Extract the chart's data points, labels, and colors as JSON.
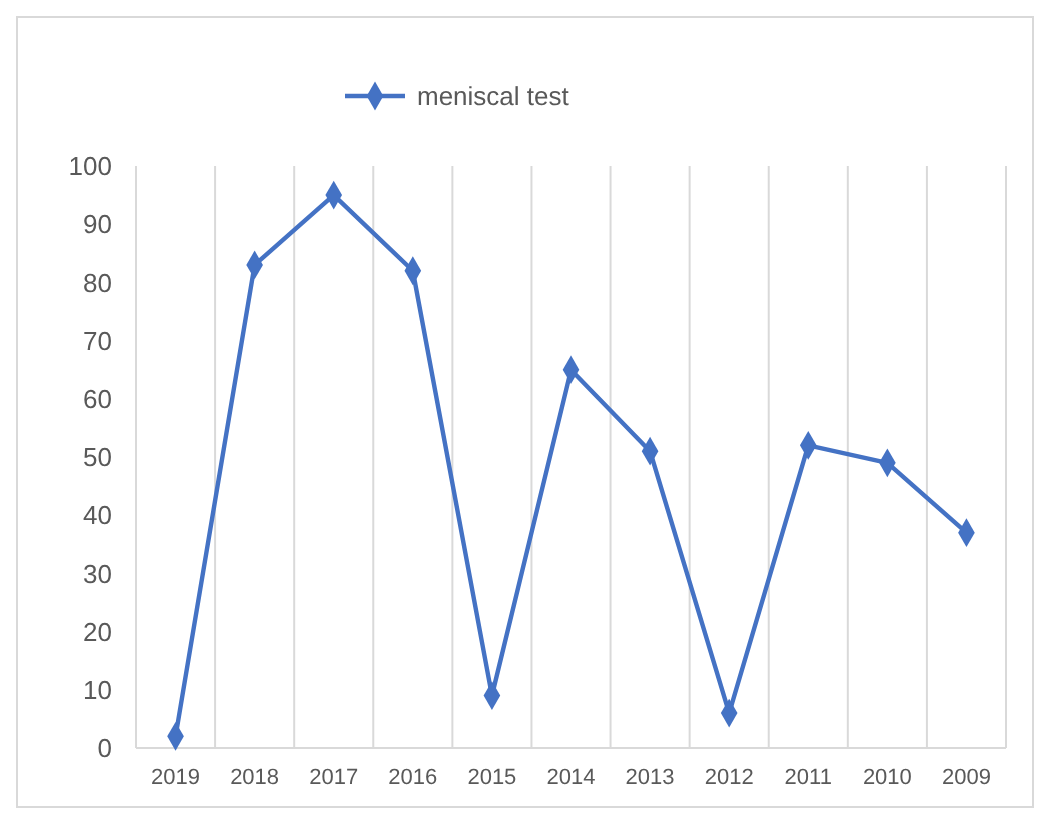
{
  "chart_data": {
    "type": "line",
    "categories": [
      "2019",
      "2018",
      "2017",
      "2016",
      "2015",
      "2014",
      "2013",
      "2012",
      "2011",
      "2010",
      "2009"
    ],
    "series": [
      {
        "name": "meniscal test",
        "color": "#4472c4",
        "values": [
          2,
          83,
          95,
          82,
          9,
          65,
          51,
          6,
          52,
          49,
          37
        ]
      }
    ],
    "ylim": [
      0,
      100
    ],
    "yticks": [
      0,
      10,
      20,
      30,
      40,
      50,
      60,
      70,
      80,
      90,
      100
    ],
    "grid": "x",
    "legend": "top",
    "marker": "diamond",
    "line_style": "solid"
  }
}
